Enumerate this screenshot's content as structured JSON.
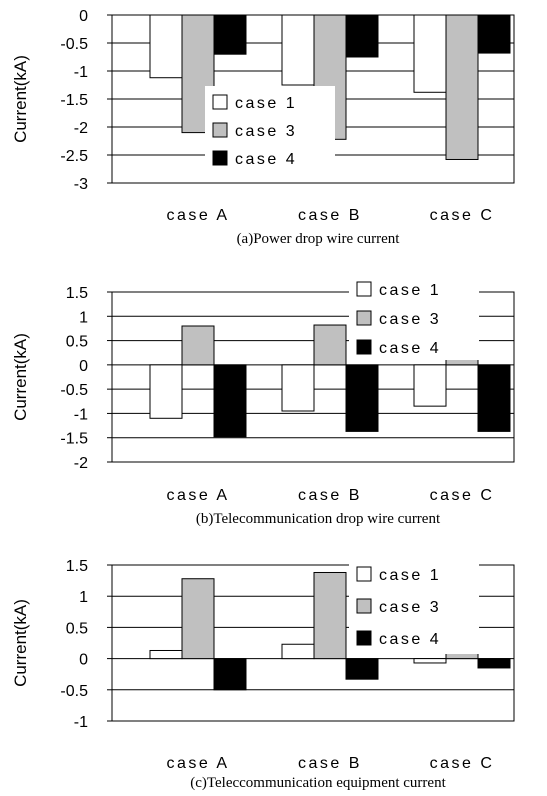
{
  "legend_colors": {
    "case1": "#ffffff",
    "case3": "#c0c0c0",
    "case4": "#000000"
  },
  "chart_data": [
    {
      "type": "bar",
      "caption": "(a)Power drop wire current",
      "ylabel": "Current(kA)",
      "categories": [
        "caseA",
        "caseB",
        "caseC"
      ],
      "category_labels": [
        "case A",
        "case B",
        "case C"
      ],
      "ylim": [
        -3,
        0
      ],
      "yticks": [
        0,
        -0.5,
        -1,
        -1.5,
        -2,
        -2.5,
        -3
      ],
      "ytick_labels": [
        "0",
        "-0.5",
        "-1",
        "-1.5",
        "-2",
        "-2.5",
        "-3"
      ],
      "grid": true,
      "legend_position": "center-right",
      "series": [
        {
          "name": "case1",
          "legend_label": "case 1",
          "values": [
            -1.12,
            -1.25,
            -1.38
          ]
        },
        {
          "name": "case3",
          "legend_label": "case 3",
          "values": [
            -2.1,
            -2.22,
            -2.58
          ]
        },
        {
          "name": "case4",
          "legend_label": "case 4",
          "values": [
            -0.7,
            -0.75,
            -0.68
          ]
        }
      ]
    },
    {
      "type": "bar",
      "caption": "(b)Telecommunication drop wire current",
      "ylabel": "Current(kA)",
      "categories": [
        "caseA",
        "caseB",
        "caseC"
      ],
      "category_labels": [
        "case A",
        "case B",
        "case C"
      ],
      "ylim": [
        -2,
        1.5
      ],
      "yticks": [
        1.5,
        1,
        0.5,
        0,
        -0.5,
        -1,
        -1.5,
        -2
      ],
      "ytick_labels": [
        "1.5",
        "1",
        "0.5",
        "0",
        "-0.5",
        "-1",
        "-1.5",
        "-2"
      ],
      "grid": true,
      "legend_position": "top-right",
      "series": [
        {
          "name": "case1",
          "legend_label": "case 1",
          "values": [
            -1.1,
            -0.95,
            -0.85
          ]
        },
        {
          "name": "case3",
          "legend_label": "case 3",
          "values": [
            0.8,
            0.82,
            1.2
          ]
        },
        {
          "name": "case4",
          "legend_label": "case 4",
          "values": [
            -1.48,
            -1.37,
            -1.37
          ]
        }
      ]
    },
    {
      "type": "bar",
      "caption": "(c)Teleccommunication equipment current",
      "ylabel": "Current(kA)",
      "categories": [
        "caseA",
        "caseB",
        "caseC"
      ],
      "category_labels": [
        "case A",
        "case B",
        "case C"
      ],
      "ylim": [
        -1,
        1.5
      ],
      "yticks": [
        1.5,
        1,
        0.5,
        0,
        -0.5,
        -1
      ],
      "ytick_labels": [
        "1.5",
        "1",
        "0.5",
        "0",
        "-0.5",
        "-1"
      ],
      "grid": true,
      "legend_position": "top-right",
      "series": [
        {
          "name": "case1",
          "legend_label": "case 1",
          "values": [
            0.13,
            0.23,
            -0.07
          ]
        },
        {
          "name": "case3",
          "legend_label": "case 3",
          "values": [
            1.28,
            1.38,
            0.5
          ]
        },
        {
          "name": "case4",
          "legend_label": "case 4",
          "values": [
            -0.5,
            -0.33,
            -0.15
          ]
        }
      ]
    }
  ]
}
